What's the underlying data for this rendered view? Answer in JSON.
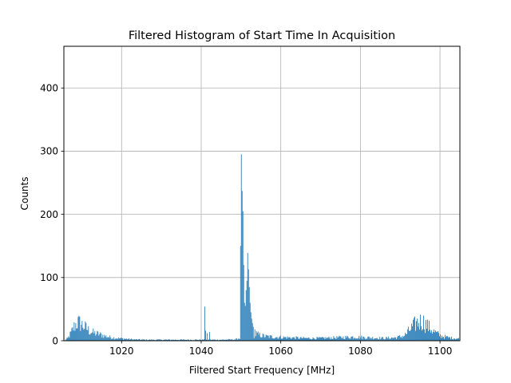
{
  "chart_data": {
    "type": "bar",
    "title": "Filtered Histogram of Start Time In Acquisition",
    "xlabel": "Filtered Start Frequency [MHz]",
    "ylabel": "Counts",
    "xlim": [
      1005.5,
      1105
    ],
    "ylim": [
      0,
      466
    ],
    "xticks": [
      1020,
      1040,
      1060,
      1080,
      1100
    ],
    "yticks": [
      0,
      100,
      200,
      300,
      400
    ],
    "grid": true,
    "bar_color": "#1f77b4",
    "bin_width": 0.2,
    "profile": [
      [
        1005.6,
        0
      ],
      [
        1006.4,
        4
      ],
      [
        1007.2,
        12
      ],
      [
        1008.0,
        22
      ],
      [
        1008.8,
        29
      ],
      [
        1009.6,
        27
      ],
      [
        1010.6,
        22
      ],
      [
        1011.8,
        16
      ],
      [
        1013.0,
        12
      ],
      [
        1014.5,
        10
      ],
      [
        1016.0,
        7
      ],
      [
        1017.5,
        5
      ],
      [
        1019.0,
        4
      ],
      [
        1021.0,
        3
      ],
      [
        1023.0,
        2
      ],
      [
        1026.0,
        1.5
      ],
      [
        1030.0,
        1.5
      ],
      [
        1035.0,
        1.5
      ],
      [
        1039.5,
        1.5
      ],
      [
        1045.0,
        1.5
      ],
      [
        1048.5,
        2
      ],
      [
        1049.5,
        4
      ],
      [
        1054.0,
        10
      ],
      [
        1056.0,
        7
      ],
      [
        1058.0,
        6
      ],
      [
        1062.0,
        5
      ],
      [
        1066.0,
        4
      ],
      [
        1070.0,
        4
      ],
      [
        1074.0,
        5
      ],
      [
        1078.0,
        6
      ],
      [
        1082.0,
        5
      ],
      [
        1086.0,
        4
      ],
      [
        1089.0,
        5
      ],
      [
        1091.0,
        8
      ],
      [
        1092.5,
        18
      ],
      [
        1094.0,
        28
      ],
      [
        1095.5,
        31
      ],
      [
        1097.0,
        22
      ],
      [
        1098.5,
        14
      ],
      [
        1100.0,
        8
      ],
      [
        1102.0,
        5
      ],
      [
        1104.9,
        3
      ]
    ],
    "spikes": [
      [
        1040.8,
        54
      ],
      [
        1041.0,
        16
      ],
      [
        1041.4,
        12
      ],
      [
        1042.0,
        14
      ],
      [
        1049.8,
        150
      ],
      [
        1050.0,
        295
      ],
      [
        1050.2,
        237
      ],
      [
        1050.4,
        205
      ],
      [
        1050.6,
        120
      ],
      [
        1050.8,
        60
      ],
      [
        1051.0,
        55
      ],
      [
        1051.2,
        80
      ],
      [
        1051.4,
        95
      ],
      [
        1051.6,
        139
      ],
      [
        1051.8,
        113
      ],
      [
        1052.0,
        85
      ],
      [
        1052.2,
        60
      ],
      [
        1052.4,
        45
      ],
      [
        1052.6,
        35
      ],
      [
        1052.8,
        28
      ],
      [
        1053.0,
        22
      ],
      [
        1053.4,
        18
      ],
      [
        1053.8,
        15
      ]
    ]
  }
}
